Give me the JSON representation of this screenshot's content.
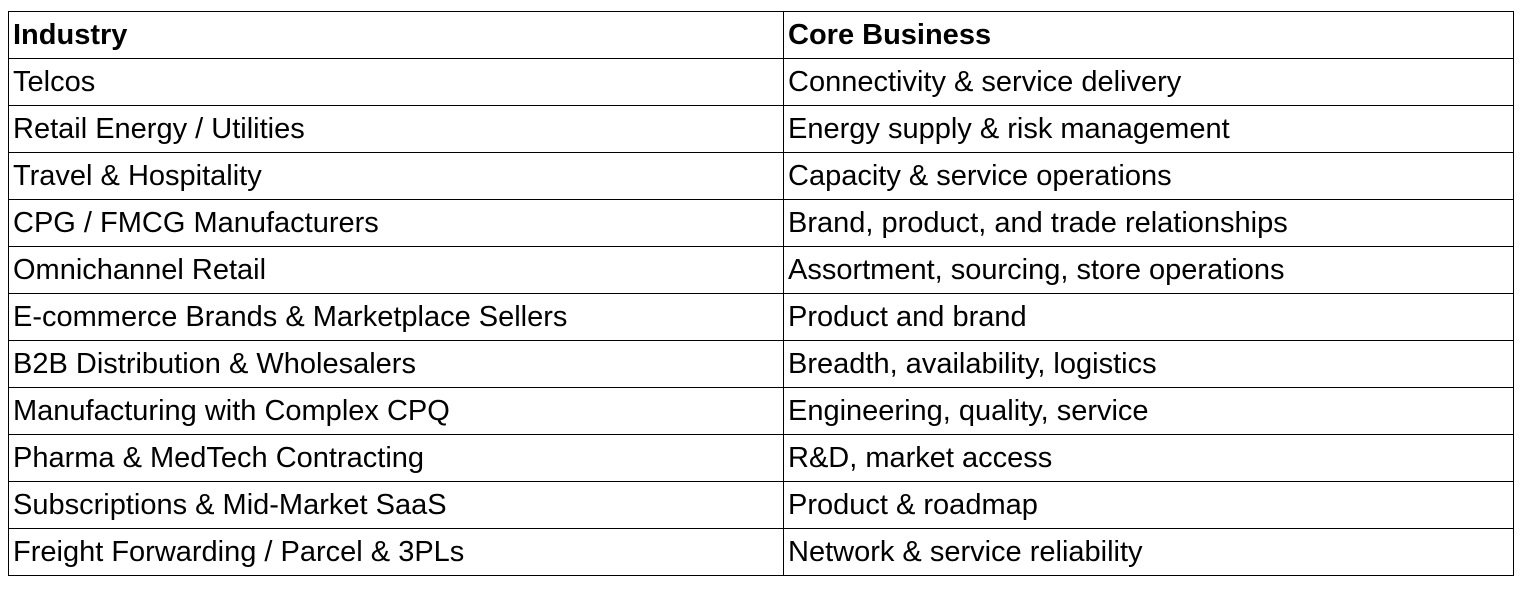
{
  "table": {
    "header": [
      "Industry",
      "Core Business"
    ],
    "rows": [
      [
        "Telcos",
        "Connectivity & service delivery"
      ],
      [
        "Retail Energy / Utilities",
        "Energy supply & risk management"
      ],
      [
        "Travel & Hospitality",
        "Capacity & service operations"
      ],
      [
        "CPG / FMCG Manufacturers",
        "Brand, product, and trade relationships"
      ],
      [
        "Omnichannel Retail",
        "Assortment, sourcing, store operations"
      ],
      [
        "E-commerce Brands & Marketplace Sellers",
        "Product and brand"
      ],
      [
        "B2B Distribution & Wholesalers",
        "Breadth, availability, logistics"
      ],
      [
        "Manufacturing with Complex CPQ",
        "Engineering, quality, service"
      ],
      [
        "Pharma & MedTech Contracting",
        "R&D, market access"
      ],
      [
        "Subscriptions & Mid-Market SaaS",
        "Product & roadmap"
      ],
      [
        "Freight Forwarding / Parcel & 3PLs",
        "Network & service reliability"
      ]
    ]
  }
}
